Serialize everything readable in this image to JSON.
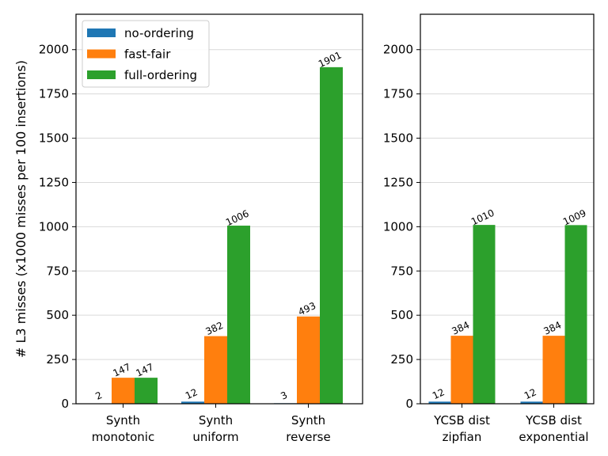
{
  "chart_data": {
    "type": "bar",
    "ylabel": "# L3 misses (x1000 misses per 100 insertions)",
    "ylim": [
      0,
      2200
    ],
    "yticks": [
      0,
      250,
      500,
      750,
      1000,
      1250,
      1500,
      1750,
      2000
    ],
    "grid": "horizontal",
    "legend_position": "top-left",
    "series_colors": [
      "#1f77b4",
      "#ff7f0e",
      "#2ca02c"
    ],
    "series": [
      {
        "name": "no-ordering"
      },
      {
        "name": "fast-fair"
      },
      {
        "name": "full-ordering"
      }
    ],
    "panels": [
      {
        "categories": [
          "Synth\nmonotonic",
          "Synth\nuniform",
          "Synth\nreverse"
        ],
        "values": [
          [
            2,
            12,
            3
          ],
          [
            147,
            382,
            493
          ],
          [
            147,
            1006,
            1901
          ]
        ]
      },
      {
        "categories": [
          "YCSB dist\nzipfian",
          "YCSB dist\nexponential"
        ],
        "values": [
          [
            12,
            12
          ],
          [
            384,
            384
          ],
          [
            1010,
            1009
          ]
        ]
      }
    ]
  }
}
